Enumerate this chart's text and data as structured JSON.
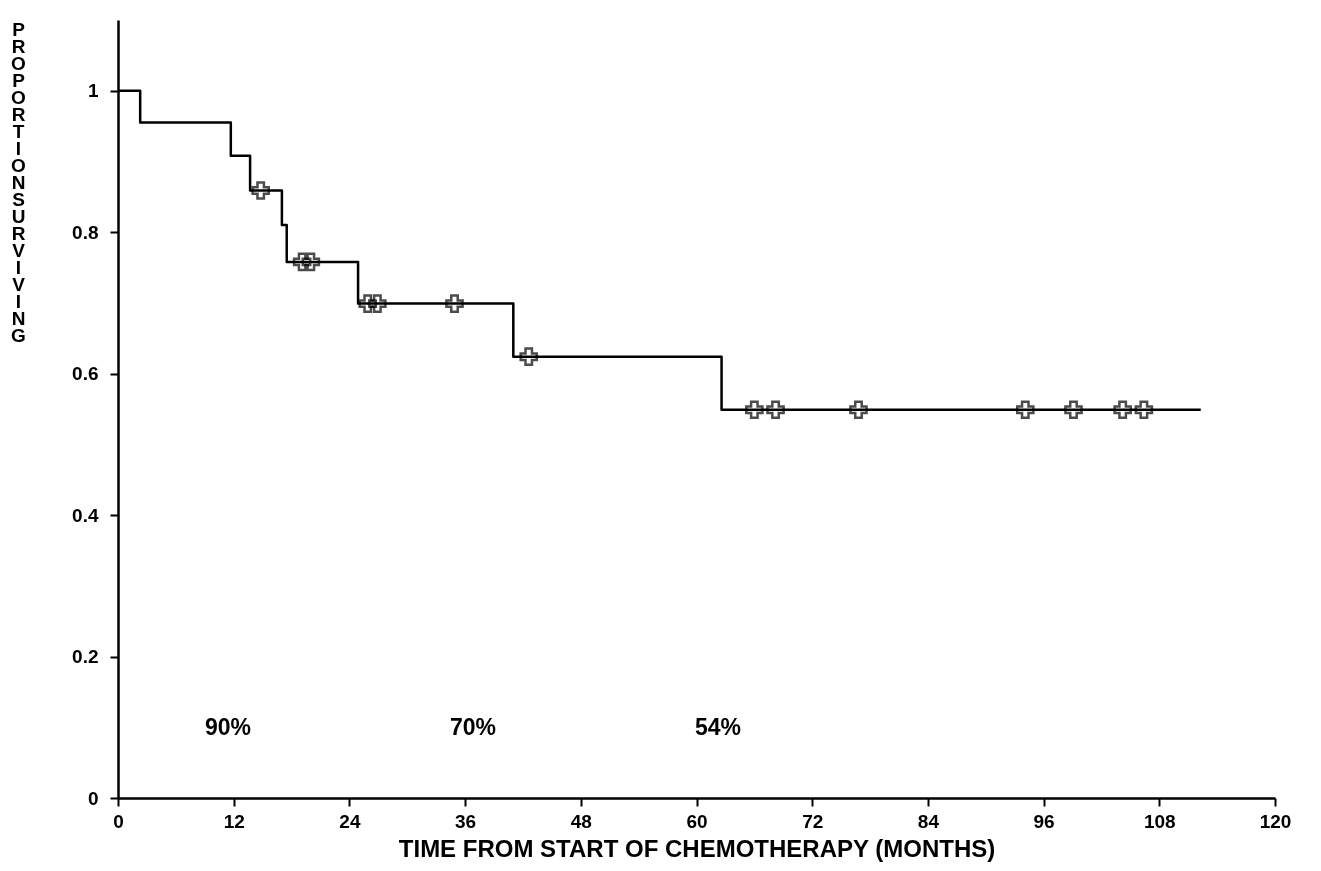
{
  "chart_data": {
    "type": "step",
    "xlabel": "TIME FROM START OF CHEMOTHERAPY (MONTHS)",
    "ylabel": "PROPORTION SURVIVING",
    "series": [
      {
        "color": "#000000",
        "x": [
          0,
          2.3,
          11.7,
          13.7,
          17,
          17.5,
          24.9,
          41,
          62.6,
          112.3
        ],
        "values": [
          1,
          0.955,
          0.908,
          0.859,
          0.81,
          0.758,
          0.699,
          0.624,
          0.549,
          0.549
        ]
      },
      {
        "type": "scatter",
        "color": "#000000",
        "marker": "cross",
        "x": [
          14.8,
          19.1,
          20.0,
          25.9,
          26.9,
          34.9,
          42.6,
          66,
          68.2,
          76.8,
          94.1,
          99.1,
          104.2,
          106.4
        ],
        "values": [
          0.859,
          0.758,
          0.758,
          0.699,
          0.699,
          0.699,
          0.624,
          0.549,
          0.549,
          0.549,
          0.549,
          0.549,
          0.549,
          0.549
        ]
      }
    ],
    "xlim": [
      0,
      120
    ],
    "xticks": [
      0,
      12,
      24,
      36,
      48,
      60,
      72,
      84,
      96,
      108,
      120
    ],
    "ylim": [
      0,
      1.1
    ],
    "yticks": [
      0,
      0.2,
      0.4,
      0.6,
      0.8,
      1
    ],
    "annotations": [
      "90%",
      "70%",
      "54%"
    ]
  }
}
